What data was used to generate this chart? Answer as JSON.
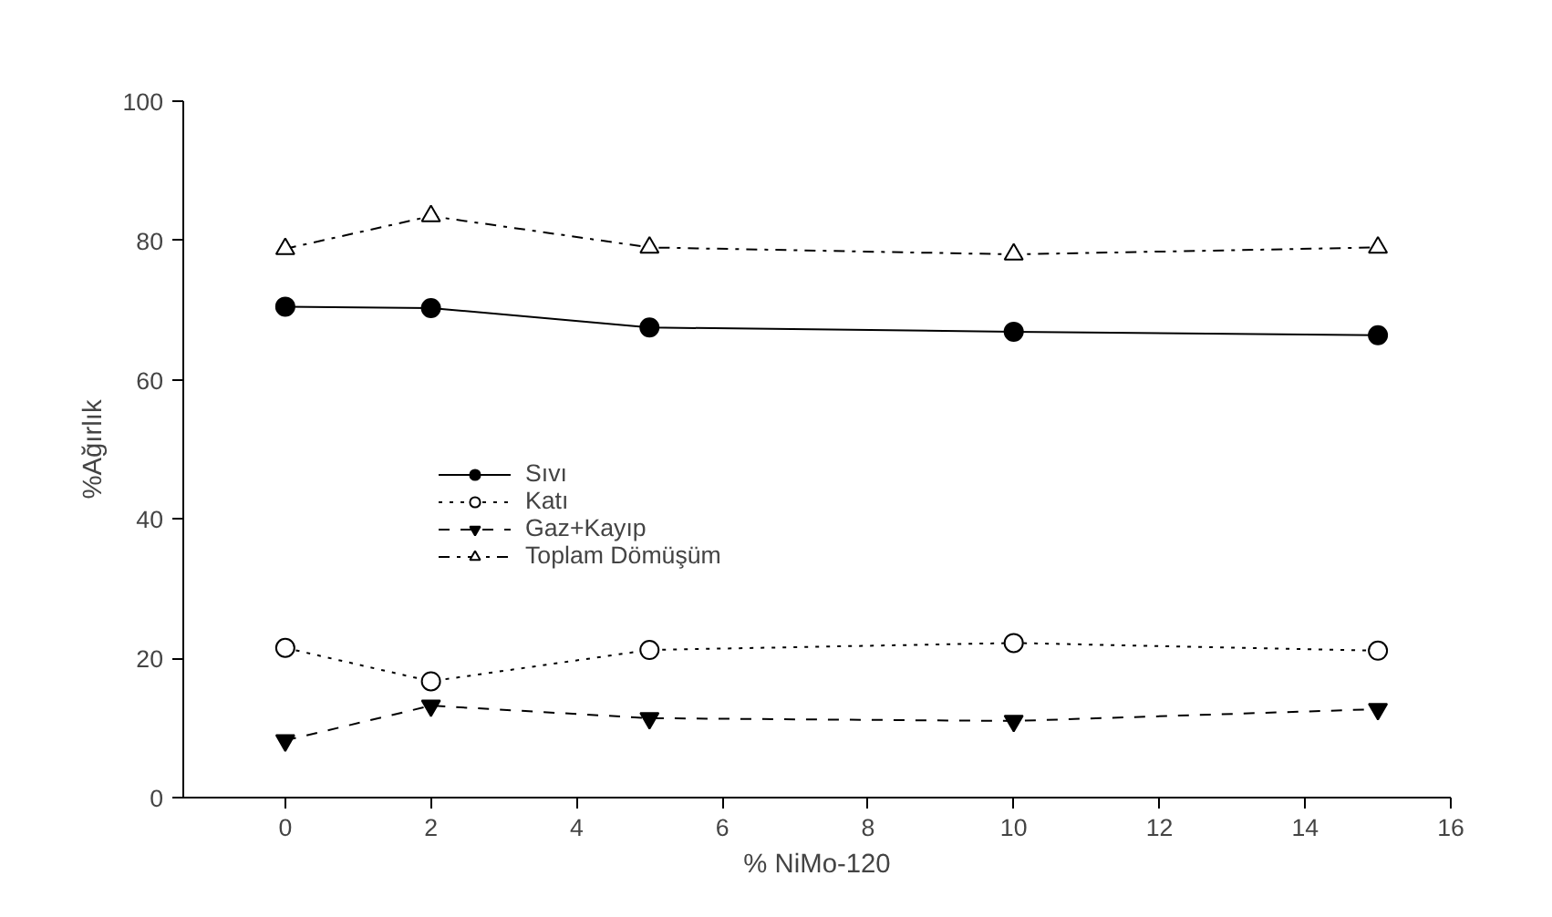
{
  "chart_data": {
    "type": "line",
    "xlabel": "% NiMo-120",
    "ylabel": "%Ağırlık",
    "x": [
      0,
      2,
      5,
      10,
      15
    ],
    "xlim": [
      -1.4,
      16
    ],
    "xticks": [
      0,
      2,
      4,
      6,
      8,
      10,
      12,
      14,
      16
    ],
    "ylim": [
      0,
      100
    ],
    "yticks": [
      0,
      20,
      40,
      60,
      80,
      100
    ],
    "grid": false,
    "legend": "left",
    "series": [
      {
        "name": "Sıvı",
        "color": "#000000",
        "values": [
          70.5,
          70.3,
          67.5,
          66.9,
          66.4
        ],
        "marker": "circle",
        "line_style": "solid"
      },
      {
        "name": "Katı",
        "color": "#000000",
        "values": [
          21.5,
          16.7,
          21.2,
          22.2,
          21.1
        ],
        "marker": "circle",
        "line_style": "dotted"
      },
      {
        "name": "Gaz+Kayıp",
        "color": "#000000",
        "values": [
          8.2,
          13.2,
          11.4,
          11.0,
          12.7
        ],
        "marker": "triangle",
        "line_style": "dashed"
      },
      {
        "name": "Toplam Dömüşüm",
        "color": "#000000",
        "values": [
          78.8,
          83.5,
          79.0,
          78.0,
          79.0
        ],
        "marker": "triangle",
        "line_style": "dashdot"
      }
    ]
  }
}
